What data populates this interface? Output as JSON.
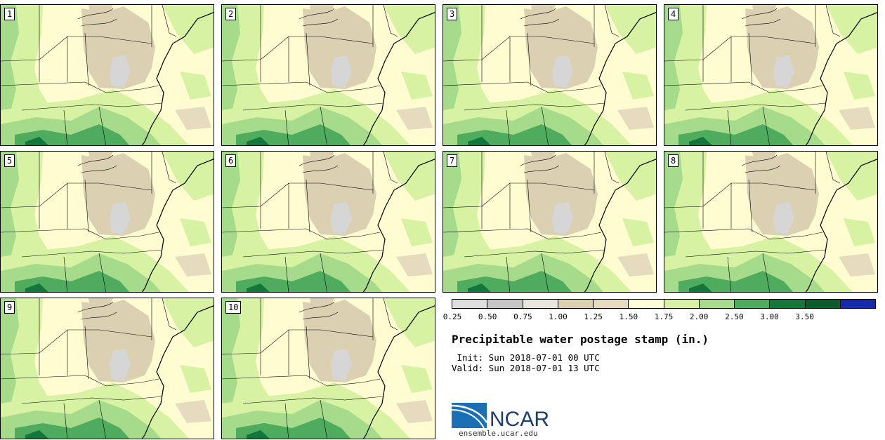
{
  "panels": [
    "1",
    "2",
    "3",
    "4",
    "5",
    "6",
    "7",
    "8",
    "9",
    "10"
  ],
  "colorbar": {
    "ticks": [
      "0.25",
      "0.50",
      "0.75",
      "1.00",
      "1.25",
      "1.50",
      "1.75",
      "2.00",
      "2.50",
      "3.00",
      "3.50"
    ],
    "colors": [
      "#dedede",
      "#c6c6c6",
      "#e7e6dc",
      "#dcd0b2",
      "#e6dbbe",
      "#fdfed3",
      "#d7f2a3",
      "#a5db8a",
      "#4fab5e",
      "#13763a",
      "#0b5c2c",
      "#1529ad"
    ]
  },
  "title": "Precipitable water postage stamp (in.)",
  "init_text": " Init: Sun 2018-07-01 00 UTC",
  "valid_text": "Valid: Sun 2018-07-01 13 UTC",
  "logo": {
    "text": "NCAR",
    "url": "ensemble.ucar.edu",
    "colors": {
      "blue": "#1a6fb5",
      "navy": "#1b3e6f"
    }
  },
  "map_colors": {
    "bg": "#fffcd2",
    "light_green": "#d7f2a3",
    "mid_green": "#a5db8a",
    "green": "#4fab5e",
    "dark_green": "#13763a",
    "tan": "#dcd0b2",
    "gray": "#d6d6d6"
  }
}
